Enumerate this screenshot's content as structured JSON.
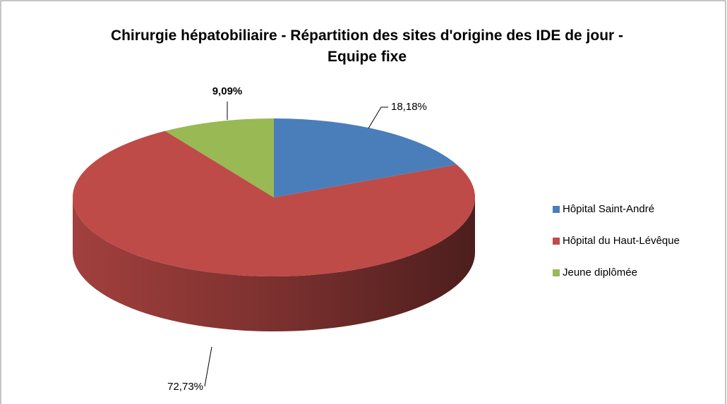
{
  "chart_data": {
    "type": "pie",
    "title": "Chirurgie hépatobiliaire - Répartition des sites d'origine des IDE de jour - Equipe fixe",
    "categories": [
      "Hôpital Saint-André",
      "Hôpital du Haut-Lévêque",
      "Jeune diplômée"
    ],
    "values": [
      18.18,
      72.73,
      9.09
    ],
    "value_labels": [
      "18,18%",
      "72,73%",
      "9,09%"
    ],
    "colors": [
      "#4a7ebb",
      "#be4b48",
      "#98b954"
    ],
    "legend": "right"
  }
}
